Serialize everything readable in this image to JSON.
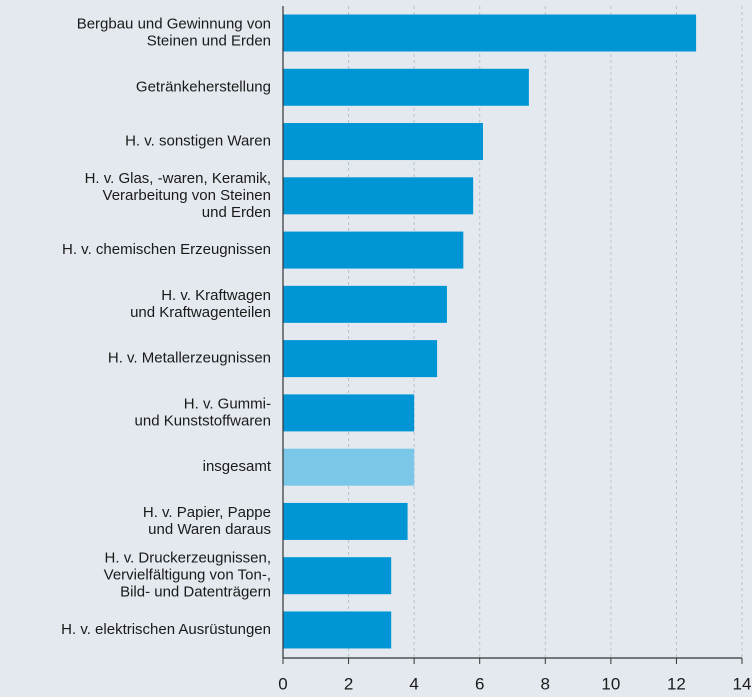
{
  "chart_data": {
    "type": "barh",
    "categories": [
      "Bergbau und Gewinnung von\nSteinen und Erden",
      "Getränkeherstellung",
      "H. v. sonstigen Waren",
      "H. v. Glas, -waren, Keramik,\nVerarbeitung von Steinen\nund Erden",
      "H. v. chemischen Erzeugnissen",
      "H. v. Kraftwagen\nund Kraftwagenteilen",
      "H. v. Metallerzeugnissen",
      "H. v. Gummi-\nund Kunststoffwaren",
      "insgesamt",
      "H. v. Papier, Pappe\nund Waren daraus",
      "H. v. Druckerzeugnissen,\nVervielfältigung von Ton-,\nBild- und Datenträgern",
      "H. v. elektrischen Ausrüstungen"
    ],
    "values": [
      12.6,
      7.5,
      6.1,
      5.8,
      5.5,
      5.0,
      4.7,
      4.0,
      4.0,
      3.8,
      3.3,
      3.3
    ],
    "colors": [
      "#0095d5",
      "#0095d5",
      "#0095d5",
      "#0095d5",
      "#0095d5",
      "#0095d5",
      "#0095d5",
      "#0095d5",
      "#7bc7e7",
      "#0095d5",
      "#0095d5",
      "#0095d5"
    ],
    "xlim": [
      0,
      14
    ],
    "xticks": [
      0,
      2,
      4,
      6,
      8,
      10,
      12,
      14
    ],
    "grid": true
  }
}
